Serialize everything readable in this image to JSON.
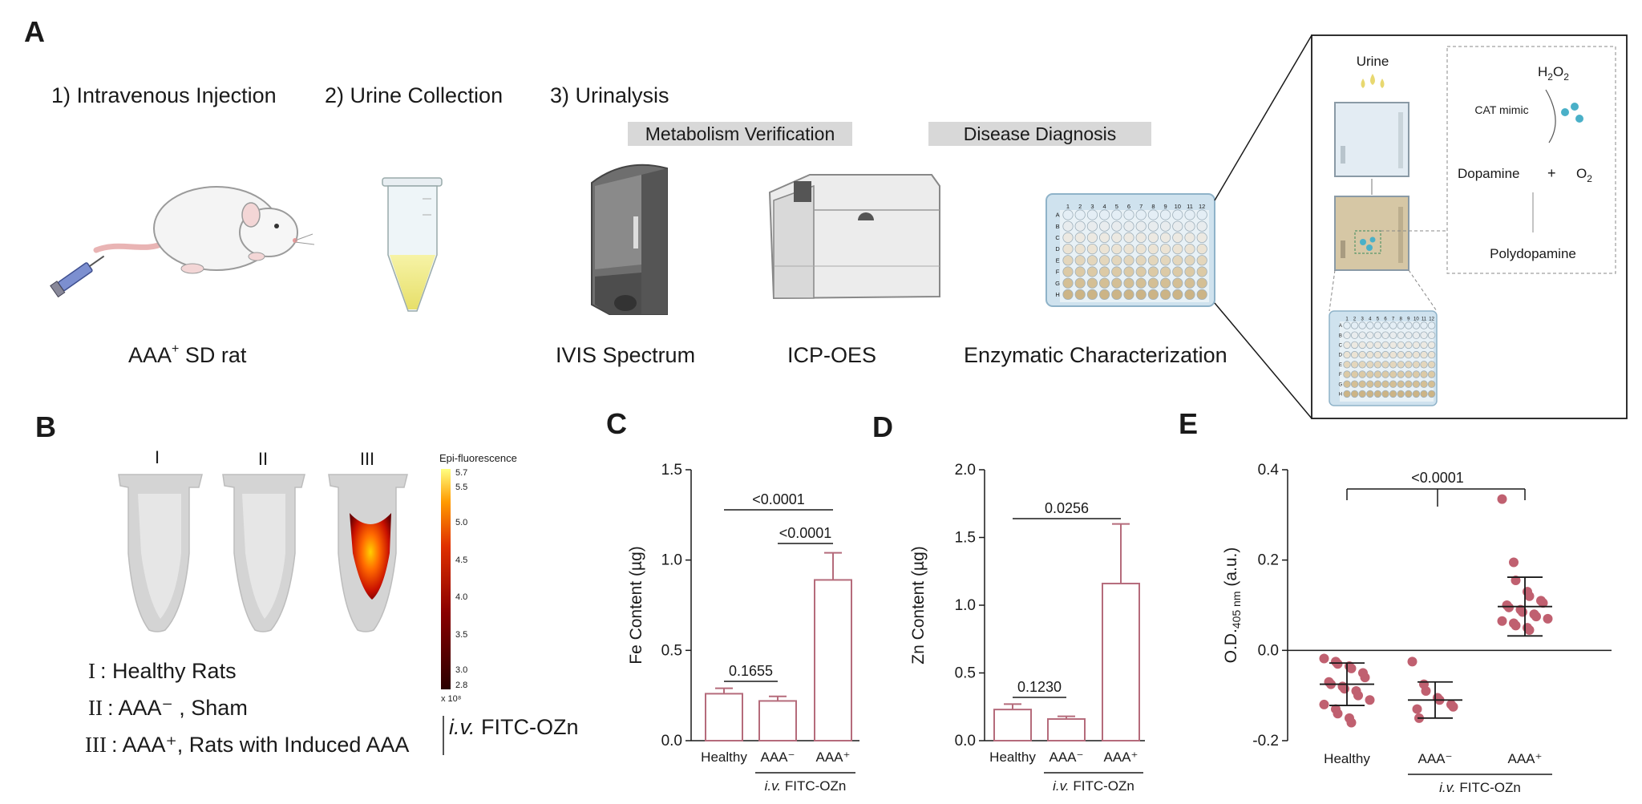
{
  "panel_a": {
    "label": "A",
    "steps": [
      "1) Intravenous Injection",
      "2) Urine Collection",
      "3) Urinalysis"
    ],
    "banners": [
      "Metabolism Verification",
      "Disease Diagnosis"
    ],
    "captions": {
      "rat_base": "AAA",
      "rat_sup": "+",
      "rat_rest": " SD rat",
      "ivis": "IVIS Spectrum",
      "icp": "ICP-OES",
      "enzymatic": "Enzymatic Characterization"
    },
    "plate_cols": [
      "1",
      "2",
      "3",
      "4",
      "5",
      "6",
      "7",
      "8",
      "9",
      "10",
      "11",
      "12"
    ],
    "plate_rows": [
      "A",
      "B",
      "C",
      "D",
      "E",
      "F",
      "G",
      "H"
    ],
    "inset": {
      "urine": "Urine",
      "h2o2_h": "H",
      "h2o2_2a": "2",
      "h2o2_o": "O",
      "h2o2_2b": "2",
      "cat": "CAT mimic",
      "dopamine": "Dopamine",
      "plus": "+",
      "o2_o": "O",
      "o2_2": "2",
      "polydopamine": "Polydopamine"
    }
  },
  "panel_b": {
    "label": "B",
    "tube_labels": [
      "I",
      "II",
      "III"
    ],
    "scale_title": "Epi-fluorescence",
    "scale_ticks": [
      "5.7",
      "5.5",
      "5.0",
      "4.5",
      "4.0",
      "3.5",
      "3.0",
      "2.8"
    ],
    "scale_unit": "x 10⁸",
    "legend": [
      {
        "num": "I",
        "text": ": Healthy Rats"
      },
      {
        "num": "II",
        "text": ": AAA⁻ , Sham"
      },
      {
        "num": "III",
        "text": ": AAA⁺,  Rats with Induced AAA"
      }
    ],
    "iv_italic": "i.v.",
    "iv_rest": " FITC-OZn"
  },
  "chart_data": [
    {
      "panel": "C",
      "type": "bar",
      "ylabel": "Fe Content (µg)",
      "categories": [
        "Healthy",
        "AAA⁻",
        "AAA⁺"
      ],
      "values": [
        0.26,
        0.22,
        0.89
      ],
      "errors": [
        0.03,
        0.025,
        0.15
      ],
      "ylim": [
        0,
        1.5
      ],
      "yticks": [
        "0.0",
        "0.5",
        "1.0",
        "1.5"
      ],
      "group_label_italic": "i.v.",
      "group_label": " FITC-OZn",
      "comparisons": [
        {
          "pair": "Healthy vs AAA⁻",
          "p": "0.1655"
        },
        {
          "pair": "Healthy vs AAA⁺",
          "p": "<0.0001"
        },
        {
          "pair": "AAA⁻ vs AAA⁺",
          "p": "<0.0001"
        }
      ]
    },
    {
      "panel": "D",
      "type": "bar",
      "ylabel": "Zn Content (µg)",
      "categories": [
        "Healthy",
        "AAA⁻",
        "AAA⁺"
      ],
      "values": [
        0.23,
        0.16,
        1.16
      ],
      "errors": [
        0.04,
        0.02,
        0.44
      ],
      "ylim": [
        0,
        2.0
      ],
      "yticks": [
        "0.0",
        "0.5",
        "1.0",
        "1.5",
        "2.0"
      ],
      "group_label_italic": "i.v.",
      "group_label": " FITC-OZn",
      "comparisons": [
        {
          "pair": "Healthy vs AAA⁻",
          "p": "0.1230"
        },
        {
          "pair": "Healthy vs AAA⁺",
          "p": "0.0256"
        }
      ]
    },
    {
      "panel": "E",
      "type": "scatter",
      "ylabel_main": "O.D.",
      "ylabel_sub": "405 nm",
      "ylabel_unit": " (a.u.)",
      "categories": [
        "Healthy",
        "AAA⁻",
        "AAA⁺"
      ],
      "series": [
        {
          "name": "Healthy",
          "values": [
            -0.018,
            -0.025,
            -0.03,
            -0.035,
            -0.04,
            -0.05,
            -0.06,
            -0.07,
            -0.075,
            -0.08,
            -0.085,
            -0.09,
            -0.1,
            -0.11,
            -0.12,
            -0.13,
            -0.14,
            -0.15,
            -0.16
          ],
          "mean": -0.075,
          "sd": 0.047
        },
        {
          "name": "AAA⁻",
          "values": [
            -0.025,
            -0.075,
            -0.09,
            -0.105,
            -0.11,
            -0.12,
            -0.125,
            -0.13,
            -0.15
          ],
          "mean": -0.11,
          "sd": 0.04
        },
        {
          "name": "AAA⁺",
          "values": [
            0.335,
            0.195,
            0.155,
            0.13,
            0.12,
            0.11,
            0.105,
            0.1,
            0.095,
            0.09,
            0.085,
            0.08,
            0.075,
            0.07,
            0.065,
            0.06,
            0.055,
            0.05,
            0.045
          ],
          "mean": 0.097,
          "sd": 0.065
        }
      ],
      "ylim": [
        -0.2,
        0.4
      ],
      "yticks": [
        "-0.2",
        "0.0",
        "0.2",
        "0.4"
      ],
      "group_label_italic": "i.v.",
      "group_label": " FITC-OZn",
      "comparisons": [
        {
          "pair": "Healthy vs AAA⁺",
          "p": "<0.0001"
        }
      ]
    }
  ],
  "colors": {
    "accent": "#b56b7b",
    "dot": "#c06070",
    "banner": "#d8d8d8",
    "plate": "#cfe2ee"
  }
}
